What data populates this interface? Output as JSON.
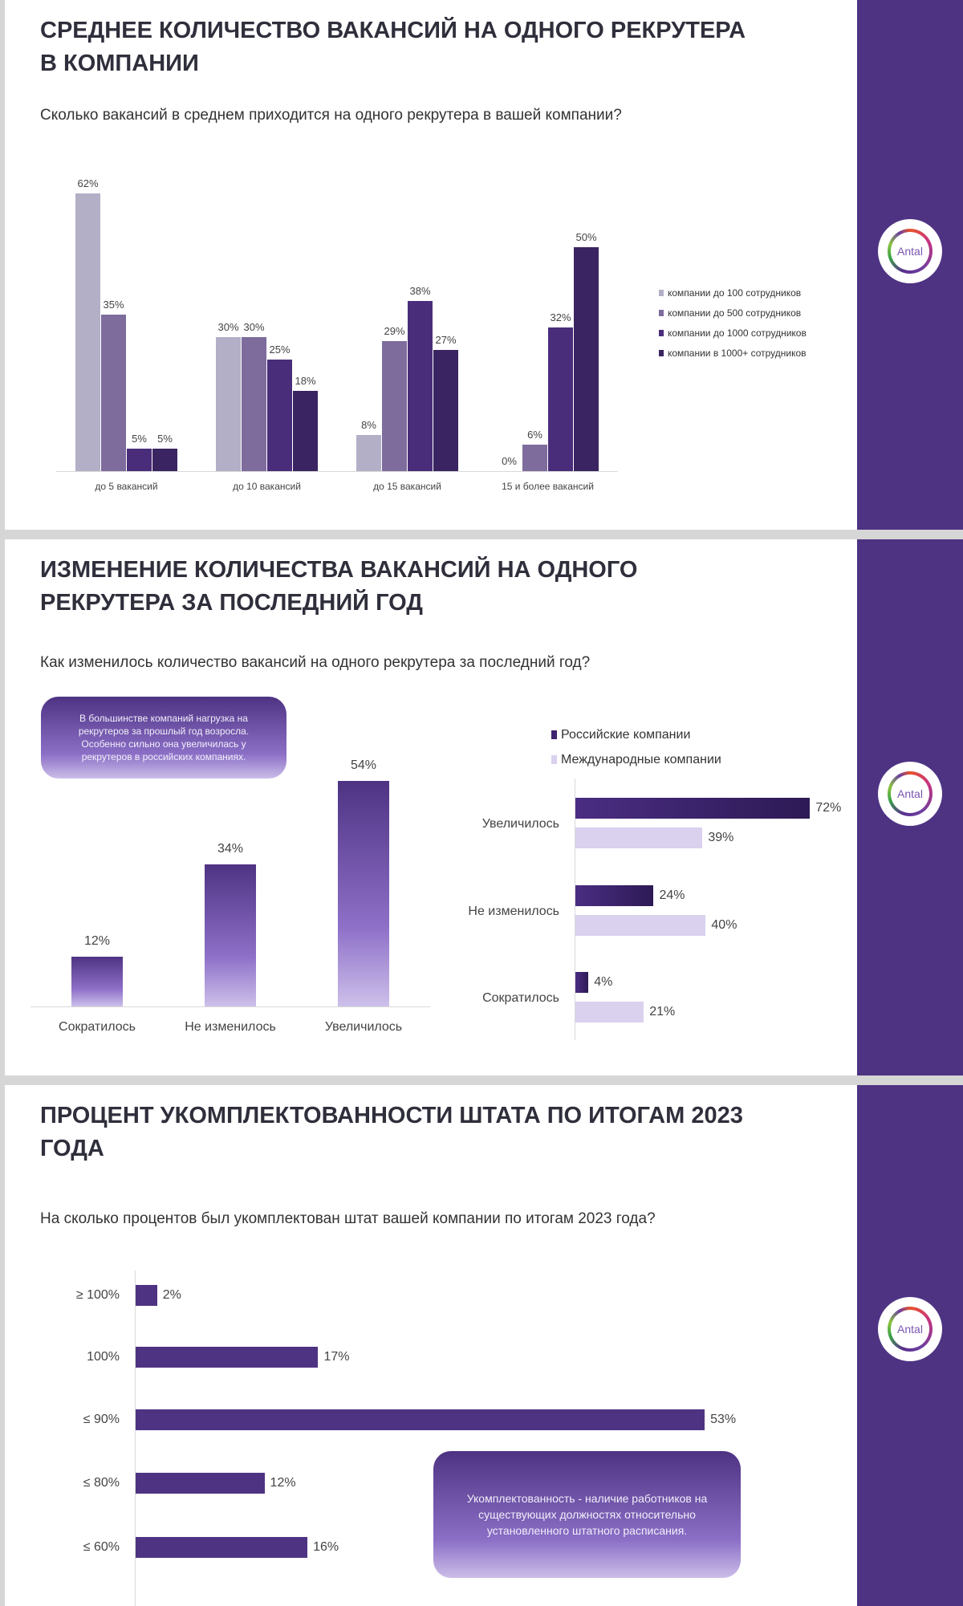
{
  "brand": {
    "logo_text": "Antal",
    "sidebar_color": "#4e3383"
  },
  "slide1": {
    "title": "Среднее количество вакансий на одного рекрутера в компании",
    "question": "Сколько вакансий в среднем приходится на одного рекрутера в вашей компании?"
  },
  "slide2": {
    "title": "Изменение количества вакансий на одного рекрутера за последний год",
    "question": "Как изменилось количество вакансий на одного рекрутера за последний год?",
    "callout": "В большинстве компаний нагрузка на рекрутеров за прошлый год возросла. Особенно сильно она увеличилась у рекрутеров в российских компаниях."
  },
  "slide3": {
    "title": "Процент укомплектованности штата по итогам 2023 года",
    "question": "На сколько процентов был укомплектован штат вашей компании по итогам 2023 года?",
    "callout": "Укомплектованность - наличие работников на существующих должностях относительно установленного штатного расписания."
  },
  "chart_data": [
    {
      "type": "bar",
      "categories": [
        "до 5 вакансий",
        "до 10 вакансий",
        "до 15 вакансий",
        "15 и более вакансий"
      ],
      "series": [
        {
          "name": "компании до 100 сотрудников",
          "values": [
            62,
            30,
            8,
            0
          ],
          "color": "#b3afc6"
        },
        {
          "name": "компании до 500 сотрудников",
          "values": [
            35,
            30,
            29,
            6
          ],
          "color": "#7d6c9c"
        },
        {
          "name": "компании до 1000 сотрудников",
          "values": [
            5,
            25,
            38,
            32
          ],
          "color": "#4a2d7a"
        },
        {
          "name": "компании в 1000+ сотрудников",
          "values": [
            5,
            18,
            27,
            50
          ],
          "color": "#3a2461"
        }
      ],
      "unit": "%",
      "legend": "right",
      "grid": false
    },
    {
      "type": "bar",
      "categories": [
        "Сократилось",
        "Не изменилось",
        "Увеличилось"
      ],
      "values": [
        12,
        34,
        54
      ],
      "unit": "%",
      "color": "#6a4ca8",
      "grid": false
    },
    {
      "type": "bar",
      "orientation": "horizontal",
      "categories": [
        "Увеличилось",
        "Не изменилось",
        "Сократилось"
      ],
      "series": [
        {
          "name": "Российские компании",
          "values": [
            72,
            24,
            4
          ],
          "color": "#3f2473"
        },
        {
          "name": "Международные компании",
          "values": [
            39,
            40,
            21
          ],
          "color": "#d9d1ee"
        }
      ],
      "unit": "%",
      "legend": "top",
      "grid": false
    },
    {
      "type": "bar",
      "orientation": "horizontal",
      "categories": [
        "≥ 100%",
        "100%",
        "≤ 90%",
        "≤ 80%",
        "≤ 60%"
      ],
      "values": [
        2,
        17,
        53,
        12,
        16
      ],
      "unit": "%",
      "color": "#4e3383",
      "grid": false
    }
  ]
}
